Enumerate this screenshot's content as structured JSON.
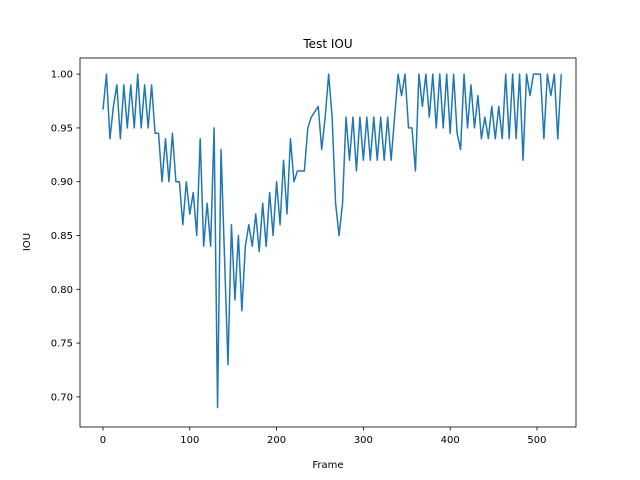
{
  "chart_data": {
    "type": "line",
    "title": "Test IOU",
    "x_label": "Frame",
    "y_label": "IOU",
    "x": [
      0,
      4,
      8,
      12,
      16,
      20,
      24,
      28,
      32,
      36,
      40,
      44,
      48,
      52,
      56,
      60,
      64,
      68,
      72,
      76,
      80,
      84,
      88,
      92,
      96,
      100,
      104,
      108,
      112,
      116,
      120,
      124,
      128,
      132,
      136,
      140,
      144,
      148,
      152,
      156,
      160,
      164,
      168,
      172,
      176,
      180,
      184,
      188,
      192,
      196,
      200,
      204,
      208,
      212,
      216,
      220,
      224,
      228,
      232,
      236,
      240,
      244,
      248,
      252,
      256,
      260,
      264,
      268,
      272,
      276,
      280,
      284,
      288,
      292,
      296,
      300,
      304,
      308,
      312,
      316,
      320,
      324,
      328,
      332,
      336,
      340,
      344,
      348,
      352,
      356,
      360,
      364,
      368,
      372,
      376,
      380,
      384,
      388,
      392,
      396,
      400,
      404,
      408,
      412,
      416,
      420,
      424,
      428,
      432,
      436,
      440,
      444,
      448,
      452,
      456,
      460,
      464,
      468,
      472,
      476,
      480,
      484,
      488,
      492,
      496,
      500,
      504,
      508,
      512,
      516,
      520,
      524,
      528
    ],
    "series": [
      {
        "name": "IOU",
        "color": "#1f77b4",
        "values": [
          0.967,
          1.0,
          0.94,
          0.97,
          0.99,
          0.94,
          0.99,
          0.95,
          0.99,
          0.95,
          1.0,
          0.95,
          0.99,
          0.95,
          0.99,
          0.945,
          0.945,
          0.9,
          0.94,
          0.9,
          0.945,
          0.9,
          0.9,
          0.86,
          0.9,
          0.87,
          0.89,
          0.85,
          0.94,
          0.84,
          0.88,
          0.84,
          0.95,
          0.69,
          0.93,
          0.83,
          0.73,
          0.86,
          0.79,
          0.85,
          0.78,
          0.84,
          0.86,
          0.84,
          0.87,
          0.835,
          0.88,
          0.84,
          0.89,
          0.85,
          0.9,
          0.86,
          0.92,
          0.87,
          0.94,
          0.9,
          0.91,
          0.91,
          0.91,
          0.95,
          0.96,
          0.965,
          0.97,
          0.93,
          0.96,
          1.0,
          0.96,
          0.88,
          0.85,
          0.88,
          0.96,
          0.92,
          0.96,
          0.91,
          0.96,
          0.92,
          0.96,
          0.92,
          0.96,
          0.92,
          0.96,
          0.92,
          0.96,
          0.92,
          0.96,
          1.0,
          0.98,
          1.0,
          0.95,
          0.95,
          0.91,
          1.0,
          0.97,
          1.0,
          0.96,
          1.0,
          0.95,
          1.0,
          0.95,
          1.0,
          0.945,
          1.0,
          0.945,
          0.93,
          1.0,
          0.95,
          0.99,
          0.95,
          0.98,
          0.94,
          0.96,
          0.94,
          0.97,
          0.94,
          0.97,
          0.94,
          1.0,
          0.94,
          1.0,
          0.94,
          1.0,
          0.92,
          1.0,
          0.98,
          1.0,
          1.0,
          1.0,
          0.94,
          1.0,
          0.98,
          1.0,
          0.94,
          1.0
        ]
      }
    ],
    "xlim": [
      -26.5,
      545
    ],
    "ylim": [
      0.672,
      1.015
    ],
    "xticks": [
      0,
      100,
      200,
      300,
      400,
      500
    ],
    "yticks": [
      {
        "value": 0.7,
        "label": "0.70"
      },
      0.75,
      {
        "value": 0.8,
        "label": "0.80"
      },
      0.85,
      {
        "value": 0.9,
        "label": "0.90"
      },
      0.95,
      {
        "value": 1.0,
        "label": "1.00"
      }
    ],
    "grid": false
  }
}
